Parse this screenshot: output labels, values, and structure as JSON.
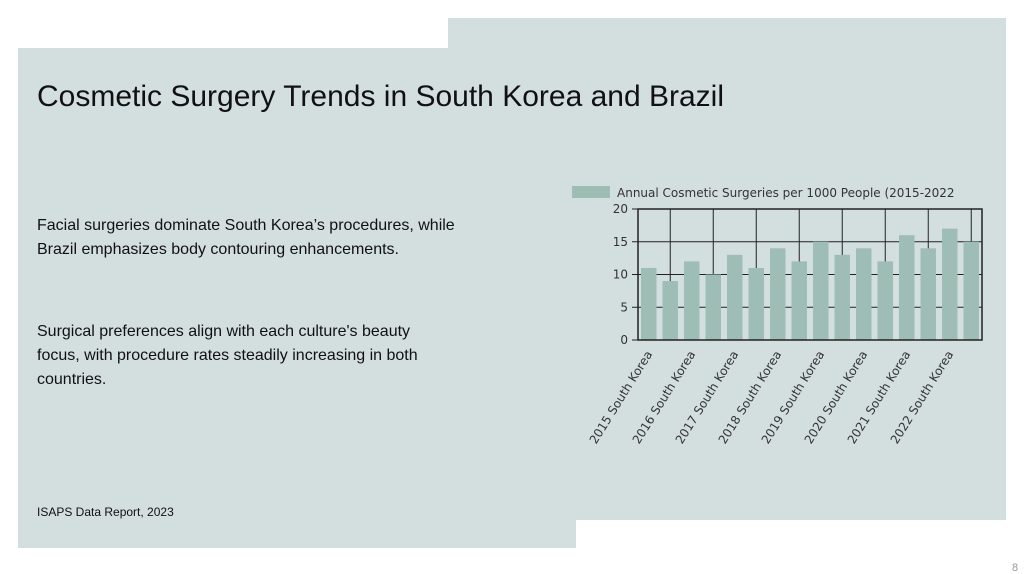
{
  "title": "Cosmetic Surgery Trends in South Korea and Brazil",
  "paragraphs": [
    "Facial surgeries dominate South Korea’s procedures, while Brazil emphasizes body contouring enhancements.",
    "Surgical preferences align with each culture's beauty focus, with procedure rates steadily increasing in both countries."
  ],
  "source": "ISAPS Data Report, 2023",
  "page_number": "8",
  "chart_data": {
    "type": "bar",
    "categories": [
      "2015 South Korea",
      null,
      "2016 South Korea",
      null,
      "2017 South Korea",
      null,
      "2018 South Korea",
      null,
      "2019 South Korea",
      null,
      "2020 South Korea",
      null,
      "2021 South Korea",
      null,
      "2022 South Korea",
      null
    ],
    "series": [
      {
        "name": "Annual Cosmetic Surgeries per 1000 People (2015-2022",
        "color": "#9dbdb5",
        "values": [
          11,
          9,
          12,
          10,
          13,
          11,
          14,
          12,
          15,
          13,
          14,
          12,
          16,
          14,
          17,
          15
        ]
      }
    ],
    "ylim": [
      0,
      20
    ],
    "yticks": [
      0,
      5,
      10,
      15,
      20
    ],
    "grid": true
  }
}
